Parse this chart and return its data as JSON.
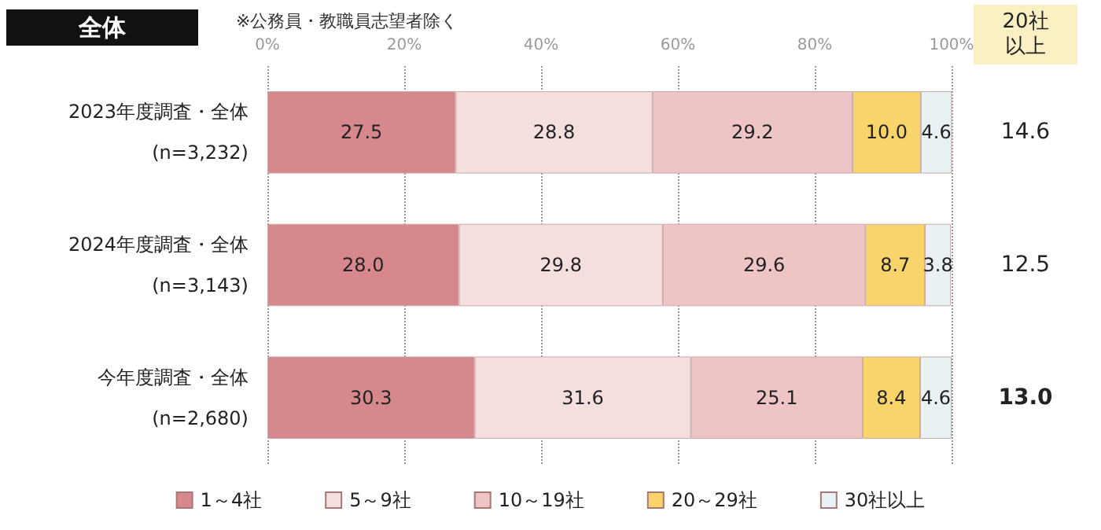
{
  "chart_data": {
    "type": "bar",
    "orientation": "horizontal",
    "stacked": true,
    "title": "全体",
    "categories": [
      "2023年度調査・全体\n(n=3,232)",
      "2024年度調査・全体\n(n=3,143)",
      "今年度調査・全体\n(n=2,680)"
    ],
    "series": [
      {
        "name": "1～4社",
        "color": "#d6888c",
        "values": [
          27.5,
          28.0,
          30.3
        ],
        "value_labels": [
          "27.5",
          "28.0",
          "30.3"
        ]
      },
      {
        "name": "5～9社",
        "color": "#f4dede",
        "values": [
          28.8,
          29.8,
          31.6
        ],
        "value_labels": [
          "28.8",
          "29.8",
          "31.6"
        ]
      },
      {
        "name": "10～19社",
        "color": "#efc4c6",
        "values": [
          29.2,
          29.6,
          25.1
        ],
        "value_labels": [
          "29.2",
          "29.6",
          "25.1"
        ]
      },
      {
        "name": "20～29社",
        "color": "#f8d46a",
        "values": [
          10.0,
          8.7,
          8.4
        ],
        "value_labels": [
          "10.0",
          "8.7",
          "8.4"
        ]
      },
      {
        "name": "30社以上",
        "color": "#e8f1f4",
        "values": [
          4.6,
          3.8,
          4.6
        ],
        "value_labels": [
          "4.6",
          "3.8",
          "4.6"
        ]
      }
    ],
    "xlim": [
      0,
      100
    ],
    "xticks": [
      {
        "value": 0,
        "label": "0%"
      },
      {
        "value": 20,
        "label": "20%"
      },
      {
        "value": 40,
        "label": "40%"
      },
      {
        "value": 60,
        "label": "60%"
      },
      {
        "value": 80,
        "label": "80%"
      },
      {
        "value": 100,
        "label": "100%"
      }
    ],
    "grid": "x",
    "legend": "bottom",
    "annotations": [
      "※公務員・教職員志望者除く",
      "20社以上",
      "14.6",
      "12.5",
      "13.0"
    ]
  }
}
